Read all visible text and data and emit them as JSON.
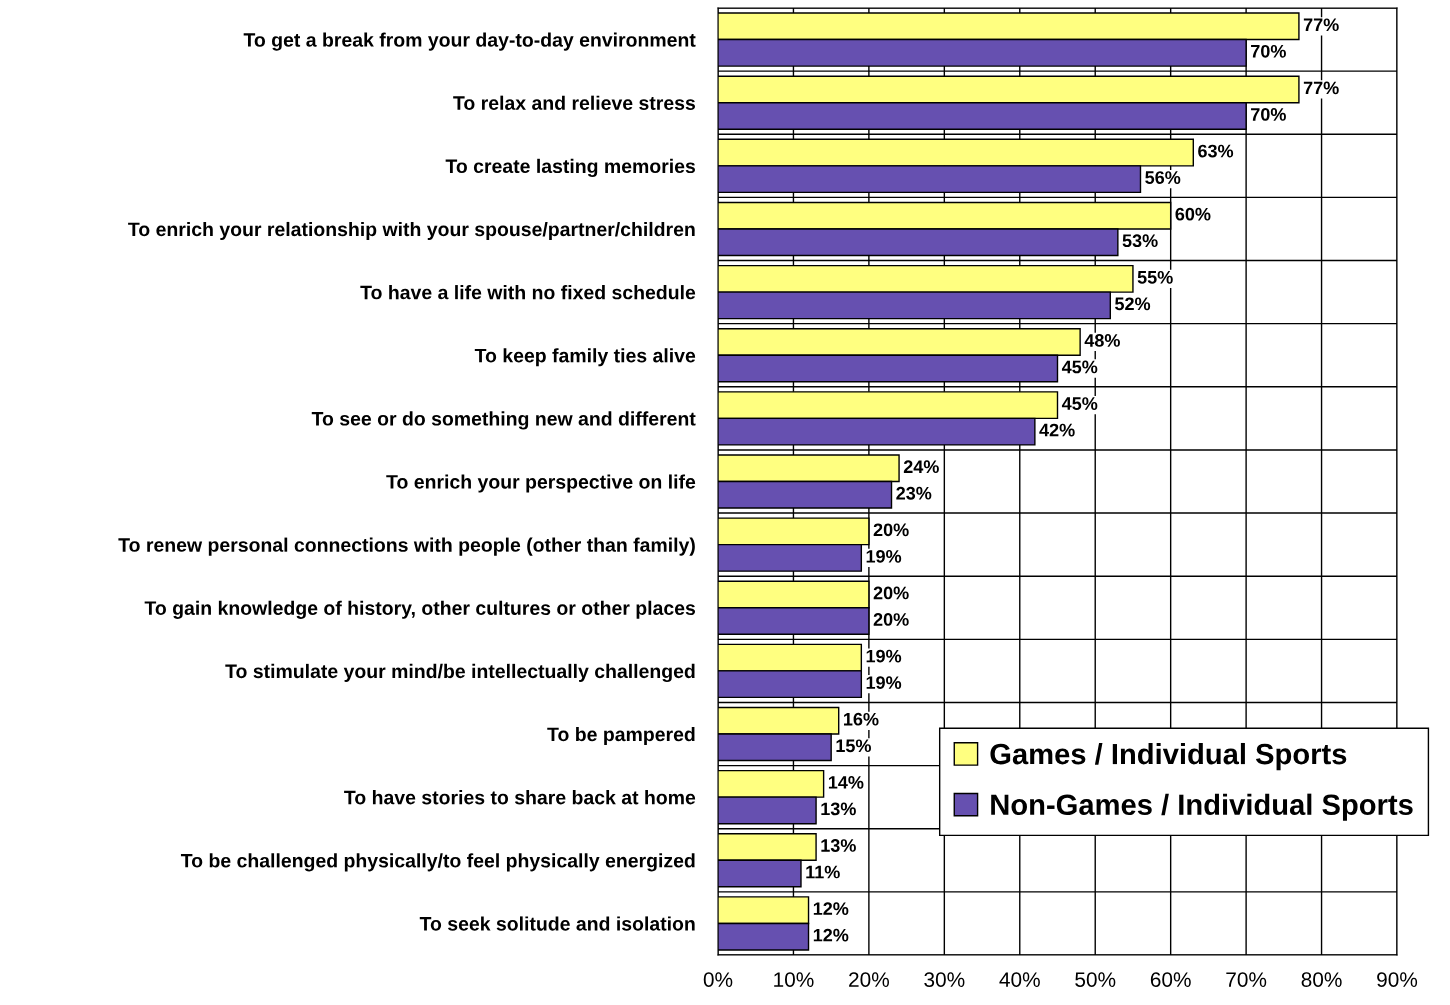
{
  "chart_data": {
    "type": "bar",
    "orientation": "horizontal",
    "categories": [
      "To get a break from your day-to-day environment",
      "To relax and relieve stress",
      "To create lasting memories",
      "To enrich your relationship with your spouse/partner/children",
      "To have a life with no fixed schedule",
      "To keep family ties alive",
      "To see or do something new and different",
      "To enrich your perspective on life",
      "To renew personal connections with people (other than family)",
      "To gain knowledge of history, other cultures or other places",
      "To stimulate your mind/be intellectually challenged",
      "To be pampered",
      "To have stories to share back at home",
      "To be challenged physically/to feel physically energized",
      "To seek solitude and isolation"
    ],
    "series": [
      {
        "name": "Games / Individual Sports",
        "color": "#ffff80",
        "values": [
          77,
          77,
          63,
          60,
          55,
          48,
          45,
          24,
          20,
          20,
          19,
          16,
          14,
          13,
          12
        ],
        "value_labels": [
          "77%",
          "77%",
          "63%",
          "60%",
          "55%",
          "48%",
          "45%",
          "24%",
          "20%",
          "20%",
          "19%",
          "16%",
          "14%",
          "13%",
          "12%"
        ]
      },
      {
        "name": "Non-Games / Individual Sports",
        "color": "#6650b0",
        "values": [
          70,
          70,
          56,
          53,
          52,
          45,
          42,
          23,
          19,
          20,
          19,
          15,
          13,
          11,
          12
        ],
        "value_labels": [
          "70%",
          "70%",
          "56%",
          "53%",
          "52%",
          "45%",
          "42%",
          "23%",
          "19%",
          "20%",
          "19%",
          "15%",
          "13%",
          "11%",
          "12%"
        ]
      }
    ],
    "xlim": [
      0,
      90
    ],
    "xticks": [
      {
        "value": 0,
        "label": "0%"
      },
      {
        "value": 10,
        "label": "10%"
      },
      {
        "value": 20,
        "label": "20%"
      },
      {
        "value": 30,
        "label": "30%"
      },
      {
        "value": 40,
        "label": "40%"
      },
      {
        "value": 50,
        "label": "50%"
      },
      {
        "value": 60,
        "label": "60%"
      },
      {
        "value": 70,
        "label": "70%"
      },
      {
        "value": 80,
        "label": "80%"
      },
      {
        "value": 90,
        "label": "90%"
      }
    ],
    "grid": true,
    "legend": "bottom right"
  }
}
